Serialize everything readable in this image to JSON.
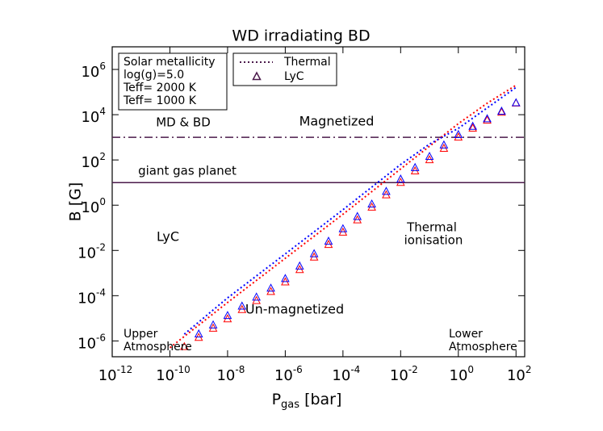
{
  "chart_data": {
    "type": "loglog",
    "title": "WD irradiating BD",
    "xlabel": [
      "P",
      "gas",
      " [bar]"
    ],
    "ylabel": "B [G]",
    "xscale": "log",
    "yscale": "log",
    "xlim": [
      1e-12,
      200
    ],
    "ylim": [
      2e-07,
      10000000.0
    ],
    "xticks": [
      {
        "value": 1e-12,
        "label": [
          "10",
          "-12"
        ]
      },
      {
        "value": 1e-10,
        "label": [
          "10",
          "-10"
        ]
      },
      {
        "value": 1e-08,
        "label": [
          "10",
          "-8"
        ]
      },
      {
        "value": 1e-06,
        "label": [
          "10",
          "-6"
        ]
      },
      {
        "value": 0.0001,
        "label": [
          "10",
          "-4"
        ]
      },
      {
        "value": 0.01,
        "label": [
          "10",
          "-2"
        ]
      },
      {
        "value": 1,
        "label": [
          "10",
          "0"
        ]
      },
      {
        "value": 100,
        "label": [
          "10",
          "2"
        ]
      }
    ],
    "yticks": [
      {
        "value": 1e-06,
        "label": [
          "10",
          "-6"
        ]
      },
      {
        "value": 0.0001,
        "label": [
          "10",
          "-4"
        ]
      },
      {
        "value": 0.01,
        "label": [
          "10",
          "-2"
        ]
      },
      {
        "value": 1,
        "label": [
          "10",
          "0"
        ]
      },
      {
        "value": 100,
        "label": [
          "10",
          "2"
        ]
      },
      {
        "value": 10000,
        "label": [
          "10",
          "4"
        ]
      },
      {
        "value": 1000000,
        "label": [
          "10",
          "6"
        ]
      }
    ],
    "info": [
      "Solar metallicity",
      "log(g)=5.0"
    ],
    "groups": [
      {
        "label": "Teff= 2000 K",
        "color": "#ff0000"
      },
      {
        "label": "Teff= 1000 K",
        "color": "#0000ff"
      }
    ],
    "styles": [
      {
        "name": "Thermal",
        "kind": "dotted",
        "color": "#4b1a4b"
      },
      {
        "name": "LyC",
        "kind": "triangle",
        "color": "#4b1a4b"
      }
    ],
    "series": [
      {
        "style": 0,
        "group": 0,
        "x": [
          1e-10,
          1e-08,
          1e-06,
          0.0001,
          0.01,
          1,
          10,
          100
        ],
        "values": [
          5e-07,
          5e-05,
          0.0045,
          0.4,
          40,
          4000,
          32000,
          200000
        ]
      },
      {
        "style": 0,
        "group": 1,
        "x": [
          3.16e-10,
          1e-08,
          1e-06,
          0.0001,
          0.01,
          0.1,
          1,
          10,
          100
        ],
        "values": [
          2e-06,
          8e-05,
          0.007,
          0.63,
          63,
          500,
          2500,
          20000,
          160000
        ]
      },
      {
        "style": 1,
        "group": 0,
        "x": [
          3.16e-10,
          1e-09,
          3.16e-09,
          1e-08,
          3.16e-08,
          1e-07,
          3.16e-07,
          1e-06,
          3.16e-06,
          1e-05,
          3.16e-05,
          0.0001,
          0.000316,
          0.001,
          0.00316,
          0.01,
          0.0316,
          0.1,
          0.316,
          1,
          3.16,
          10,
          31.6,
          100
        ],
        "values": [
          5.5e-07,
          1.4e-06,
          3.6e-06,
          9.3e-06,
          2.4e-05,
          6e-05,
          0.00015,
          0.0004,
          0.0014,
          0.005,
          0.018,
          0.063,
          0.22,
          0.8,
          2.8,
          10,
          32,
          100,
          320,
          1000,
          2500,
          5600,
          12600,
          32000
        ]
      },
      {
        "style": 1,
        "group": 1,
        "x": [
          1e-09,
          3.16e-09,
          1e-08,
          3.16e-08,
          1e-07,
          3.16e-07,
          1e-06,
          3.16e-06,
          1e-05,
          3.16e-05,
          0.0001,
          0.000316,
          0.001,
          0.00316,
          0.01,
          0.0316,
          0.1,
          0.316,
          1,
          3.16,
          10,
          31.6,
          100
        ],
        "values": [
          2e-06,
          5e-06,
          1.3e-05,
          3.4e-05,
          8.5e-05,
          0.00021,
          0.00056,
          0.002,
          0.007,
          0.025,
          0.089,
          0.31,
          1.1,
          4,
          14,
          45,
          140,
          450,
          1300,
          3000,
          6500,
          14000,
          33000
        ]
      }
    ],
    "hlines": [
      {
        "y": 1000,
        "style": "dashdot",
        "color": "#4b1a4b",
        "label": "MD & BD"
      },
      {
        "y": 10,
        "style": "solid",
        "color": "#4b1a4b",
        "label": "giant gas planet"
      }
    ],
    "annotations": [
      "Magnetized",
      "LyC",
      "Thermal",
      "ionisation",
      "Un-magnetized",
      "Upper",
      "Atmosphere",
      "Lower",
      "Atmosphere"
    ]
  }
}
